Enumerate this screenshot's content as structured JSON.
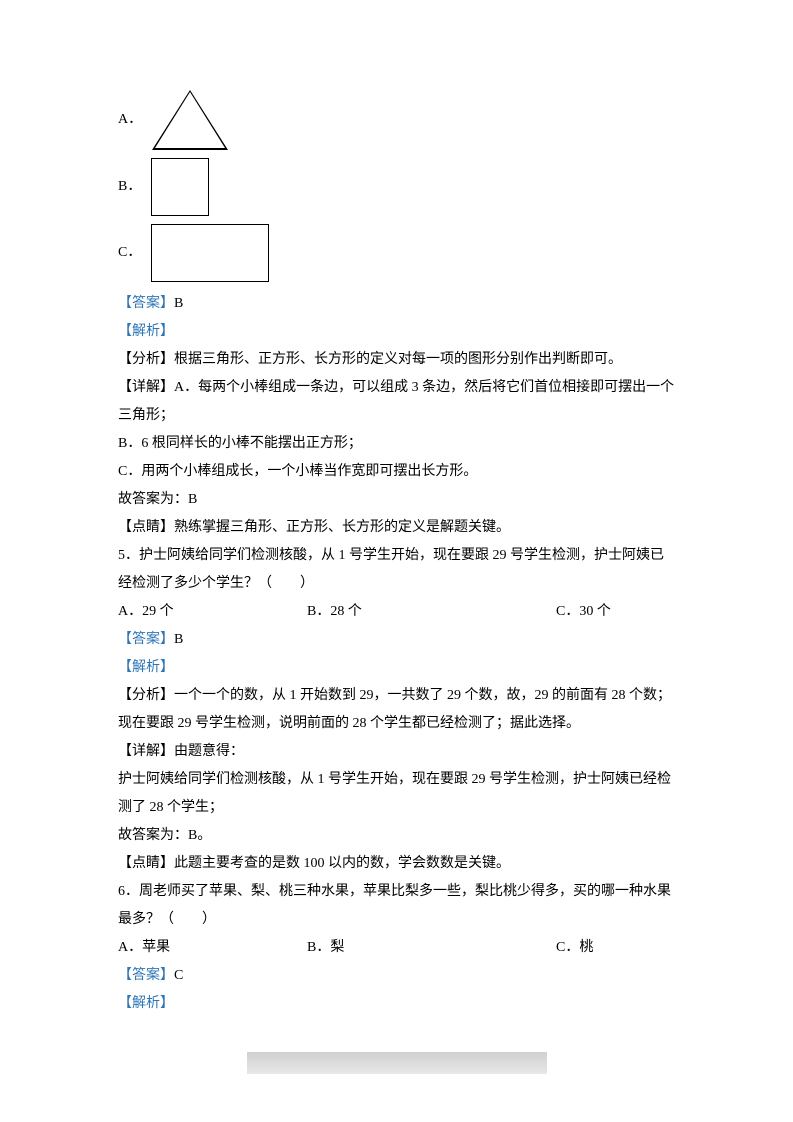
{
  "q4": {
    "optionA_label": "A．",
    "optionB_label": "B．",
    "optionC_label": "C．",
    "answer_bracket": "【答案】",
    "answer_value": "B",
    "analysis_bracket": "【解析】",
    "analysis_label": "【分析】",
    "analysis_text": "根据三角形、正方形、长方形的定义对每一项的图形分别作出判断即可。",
    "detail_label": "【详解】",
    "detail_a": "A．每两个小棒组成一条边，可以组成 3 条边，然后将它们首位相接即可摆出一个三角形；",
    "detail_b": "B．6 根同样长的小棒不能摆出正方形；",
    "detail_c": "C．用两个小棒组成长，一个小棒当作宽即可摆出长方形。",
    "final_answer": "故答案为：B",
    "tip_label": "【点睛】",
    "tip_text": "熟练掌握三角形、正方形、长方形的定义是解题关键。"
  },
  "q5": {
    "number": "5．",
    "question": "护士阿姨给同学们检测核酸，从 1 号学生开始，现在要跟 29 号学生检测，护士阿姨已经检测了多少个学生？（　　）",
    "optionA": "A．29 个",
    "optionB": "B．28 个",
    "optionC": "C．30 个",
    "answer_bracket": "【答案】",
    "answer_value": "B",
    "analysis_bracket": "【解析】",
    "analysis_label": "【分析】",
    "analysis_text": "一个一个的数，从 1 开始数到 29，一共数了 29 个数，故，29 的前面有 28 个数；现在要跟 29 号学生检测，说明前面的 28 个学生都已经检测了；据此选择。",
    "detail_label": "【详解】",
    "detail_text": "由题意得：",
    "detail_body": "护士阿姨给同学们检测核酸，从 1 号学生开始，现在要跟 29 号学生检测，护士阿姨已经检测了 28 个学生；",
    "final_answer": "故答案为：B。",
    "tip_label": "【点睛】",
    "tip_text": "此题主要考查的是数 100 以内的数，学会数数是关键。"
  },
  "q6": {
    "number": "6．",
    "question": "周老师买了苹果、梨、桃三种水果，苹果比梨多一些，梨比桃少得多，买的哪一种水果最多？（　　）",
    "optionA": "A．苹果",
    "optionB": "B．梨",
    "optionC": "C．桃",
    "answer_bracket": "【答案】",
    "answer_value": "C",
    "analysis_bracket": "【解析】"
  }
}
